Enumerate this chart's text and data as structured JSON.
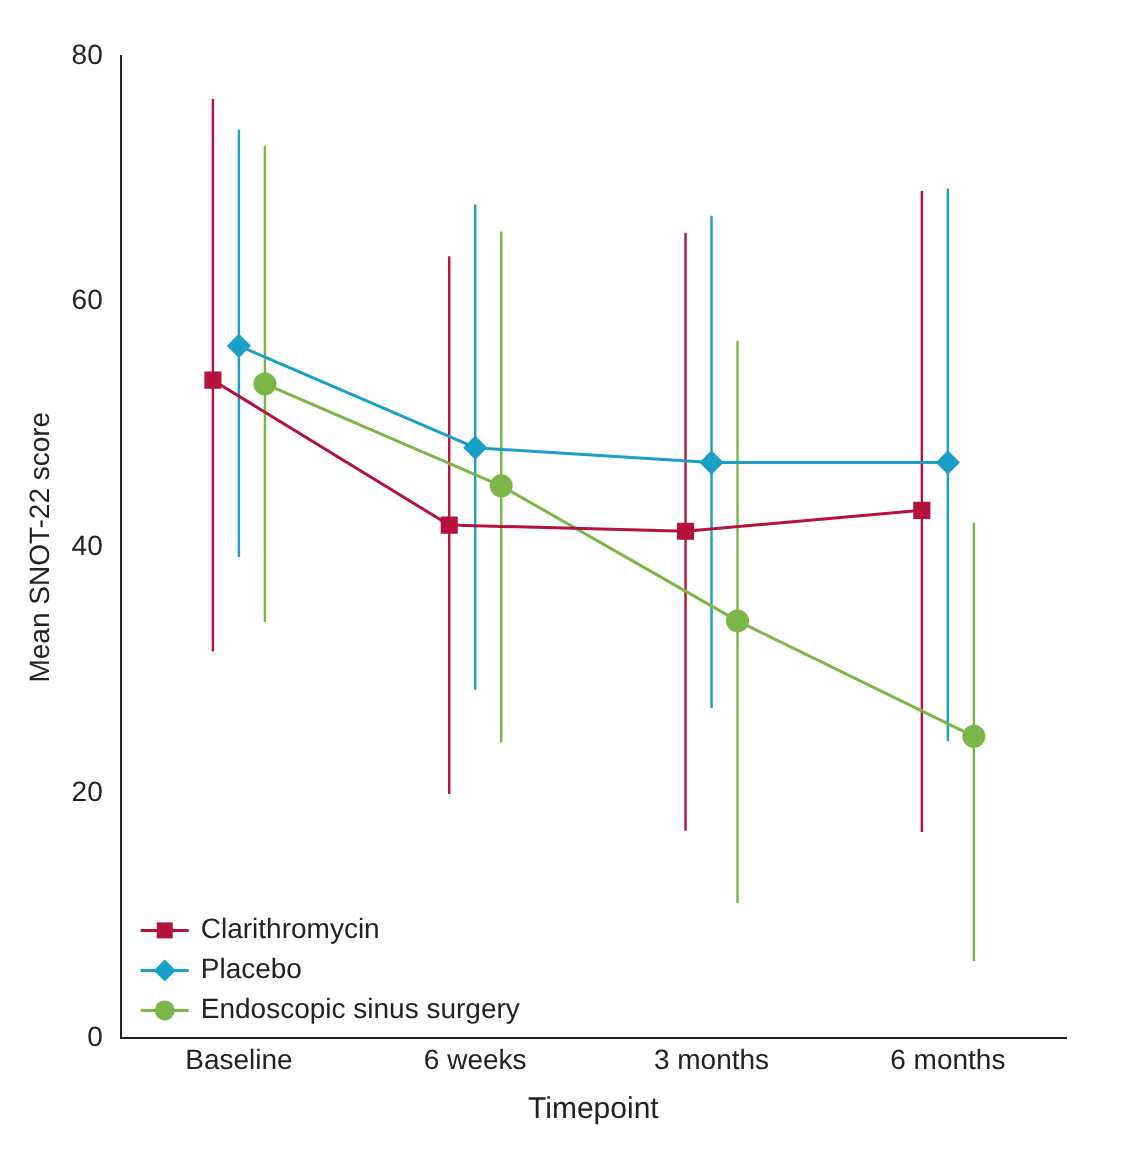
{
  "chart_data": {
    "type": "line",
    "xlabel": "Timepoint",
    "ylabel": "Mean SNOT-22 score",
    "categories": [
      "Baseline",
      "6 weeks",
      "3 months",
      "6 months"
    ],
    "ylim": [
      0,
      80
    ],
    "yticks": [
      0,
      20,
      40,
      60,
      80
    ],
    "grid": false,
    "legend": "bottom left",
    "series": [
      {
        "name": "Clarithromycin",
        "color": "#b5123e",
        "marker": "square",
        "values": [
          53.6,
          41.8,
          41.3,
          43
        ],
        "errors": [
          [
            31.5,
            76.5
          ],
          [
            19.9,
            63.7
          ],
          [
            16.9,
            65.6
          ],
          [
            16.8,
            69
          ]
        ]
      },
      {
        "name": "Placebo",
        "color": "#1a9fc6",
        "marker": "diamond",
        "values": [
          56.4,
          48.1,
          46.9,
          46.9
        ],
        "errors": [
          [
            39.2,
            74
          ],
          [
            28.4,
            67.9
          ],
          [
            26.9,
            67
          ],
          [
            24.2,
            69.2
          ]
        ]
      },
      {
        "name": "Endoscopic sinus surgery",
        "color": "#7ab648",
        "marker": "circle",
        "values": [
          53.3,
          45,
          34,
          24.6
        ],
        "errors": [
          [
            33.9,
            72.7
          ],
          [
            24.1,
            65.7
          ],
          [
            11,
            56.8
          ],
          [
            6.3,
            42
          ]
        ]
      }
    ]
  }
}
